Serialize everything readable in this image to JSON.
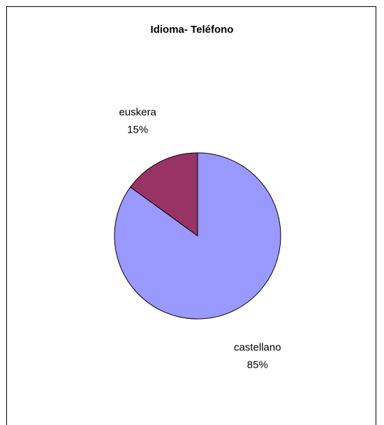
{
  "chart_data": {
    "type": "pie",
    "title": "Idioma- Teléfono",
    "slices": [
      {
        "label": "castellano",
        "value": 85,
        "percent_label": "85%",
        "color": "#9999ff"
      },
      {
        "label": "euskera",
        "value": 15,
        "percent_label": "15%",
        "color": "#993366"
      }
    ],
    "legend": "none"
  }
}
